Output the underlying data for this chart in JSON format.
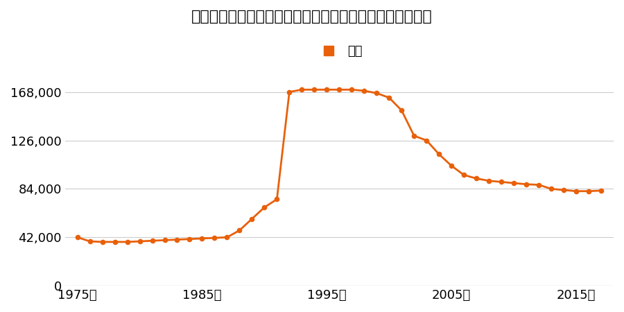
{
  "title": "兵庫県明石市魚住町西岡字殿ケ市１５９９番１の地価推移",
  "legend_label": "価格",
  "line_color": "#e8600a",
  "marker_color": "#e8600a",
  "background_color": "#ffffff",
  "grid_color": "#cccccc",
  "years": [
    1975,
    1976,
    1977,
    1978,
    1979,
    1980,
    1981,
    1982,
    1983,
    1984,
    1985,
    1986,
    1987,
    1988,
    1989,
    1990,
    1991,
    1992,
    1993,
    1994,
    1995,
    1996,
    1997,
    1998,
    1999,
    2000,
    2001,
    2002,
    2003,
    2004,
    2005,
    2006,
    2007,
    2008,
    2009,
    2010,
    2011,
    2012,
    2013,
    2014,
    2015,
    2016,
    2017
  ],
  "values": [
    42000,
    38500,
    38000,
    38000,
    38000,
    38500,
    39000,
    39500,
    40000,
    40500,
    41000,
    41500,
    42000,
    48000,
    58000,
    68000,
    75000,
    168000,
    170000,
    170000,
    170000,
    170000,
    170000,
    169000,
    167000,
    163000,
    152000,
    130000,
    126000,
    114000,
    104000,
    96000,
    93000,
    91000,
    90000,
    89000,
    88000,
    87500,
    84000,
    83000,
    82000,
    82000,
    82500
  ],
  "yticks": [
    0,
    42000,
    84000,
    126000,
    168000
  ],
  "xticks": [
    1975,
    1985,
    1995,
    2005,
    2015
  ],
  "ylim": [
    0,
    185000
  ],
  "xlim": [
    1974,
    2018
  ]
}
